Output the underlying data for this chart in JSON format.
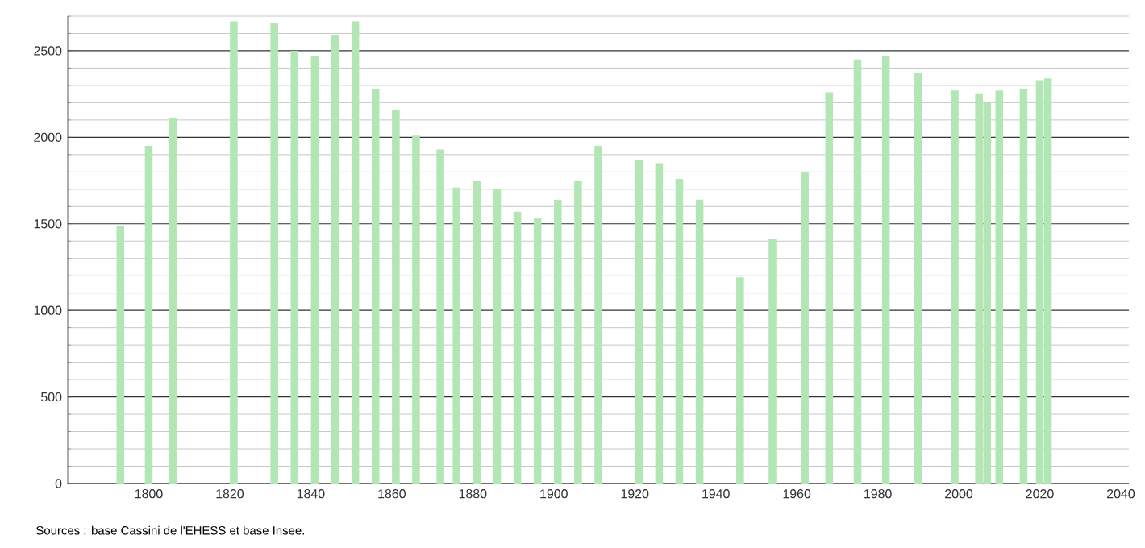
{
  "chart_data": {
    "type": "bar",
    "color": "#b2e6b4",
    "x": [
      1793,
      1800,
      1806,
      1821,
      1831,
      1836,
      1841,
      1846,
      1851,
      1856,
      1861,
      1866,
      1872,
      1876,
      1881,
      1886,
      1891,
      1896,
      1901,
      1906,
      1911,
      1921,
      1926,
      1931,
      1936,
      1946,
      1954,
      1962,
      1968,
      1975,
      1982,
      1990,
      1999,
      2005,
      2007,
      2010,
      2016,
      2020,
      2022
    ],
    "values": [
      1490,
      1950,
      2110,
      2670,
      2660,
      2500,
      2470,
      2590,
      2670,
      2280,
      2160,
      2010,
      1930,
      1710,
      1750,
      1700,
      1570,
      1530,
      1640,
      1750,
      1950,
      1870,
      1850,
      1760,
      1640,
      1190,
      1410,
      1800,
      2260,
      2450,
      2470,
      2370,
      2270,
      2250,
      2200,
      2270,
      2280,
      2330,
      2340
    ],
    "xlim": [
      1780,
      2042
    ],
    "xticks": [
      1800,
      1820,
      1840,
      1860,
      1880,
      1900,
      1920,
      1940,
      1960,
      1980,
      2000,
      2020,
      2040
    ],
    "ylim": [
      0,
      2700
    ],
    "yticks": [
      0,
      {
        "value": 100,
        "label": null
      },
      {
        "value": 200,
        "label": null
      },
      {
        "value": 300,
        "label": null
      },
      {
        "value": 400,
        "label": null
      },
      500,
      {
        "value": 600,
        "label": null
      },
      {
        "value": 700,
        "label": null
      },
      {
        "value": 800,
        "label": null
      },
      {
        "value": 900,
        "label": null
      },
      1000,
      {
        "value": 1100,
        "label": null
      },
      {
        "value": 1200,
        "label": null
      },
      {
        "value": 1300,
        "label": null
      },
      {
        "value": 1400,
        "label": null
      },
      1500,
      {
        "value": 1600,
        "label": null
      },
      {
        "value": 1700,
        "label": null
      },
      {
        "value": 1800,
        "label": null
      },
      {
        "value": 1900,
        "label": null
      },
      2000,
      {
        "value": 2100,
        "label": null
      },
      {
        "value": 2200,
        "label": null
      },
      {
        "value": 2300,
        "label": null
      },
      {
        "value": 2400,
        "label": null
      },
      2500,
      {
        "value": 2600,
        "label": null
      },
      {
        "value": 2700,
        "label": null
      }
    ],
    "grid": "y",
    "annotations": [
      "Sources : base Cassini de l'EHESS et base Insee."
    ]
  }
}
